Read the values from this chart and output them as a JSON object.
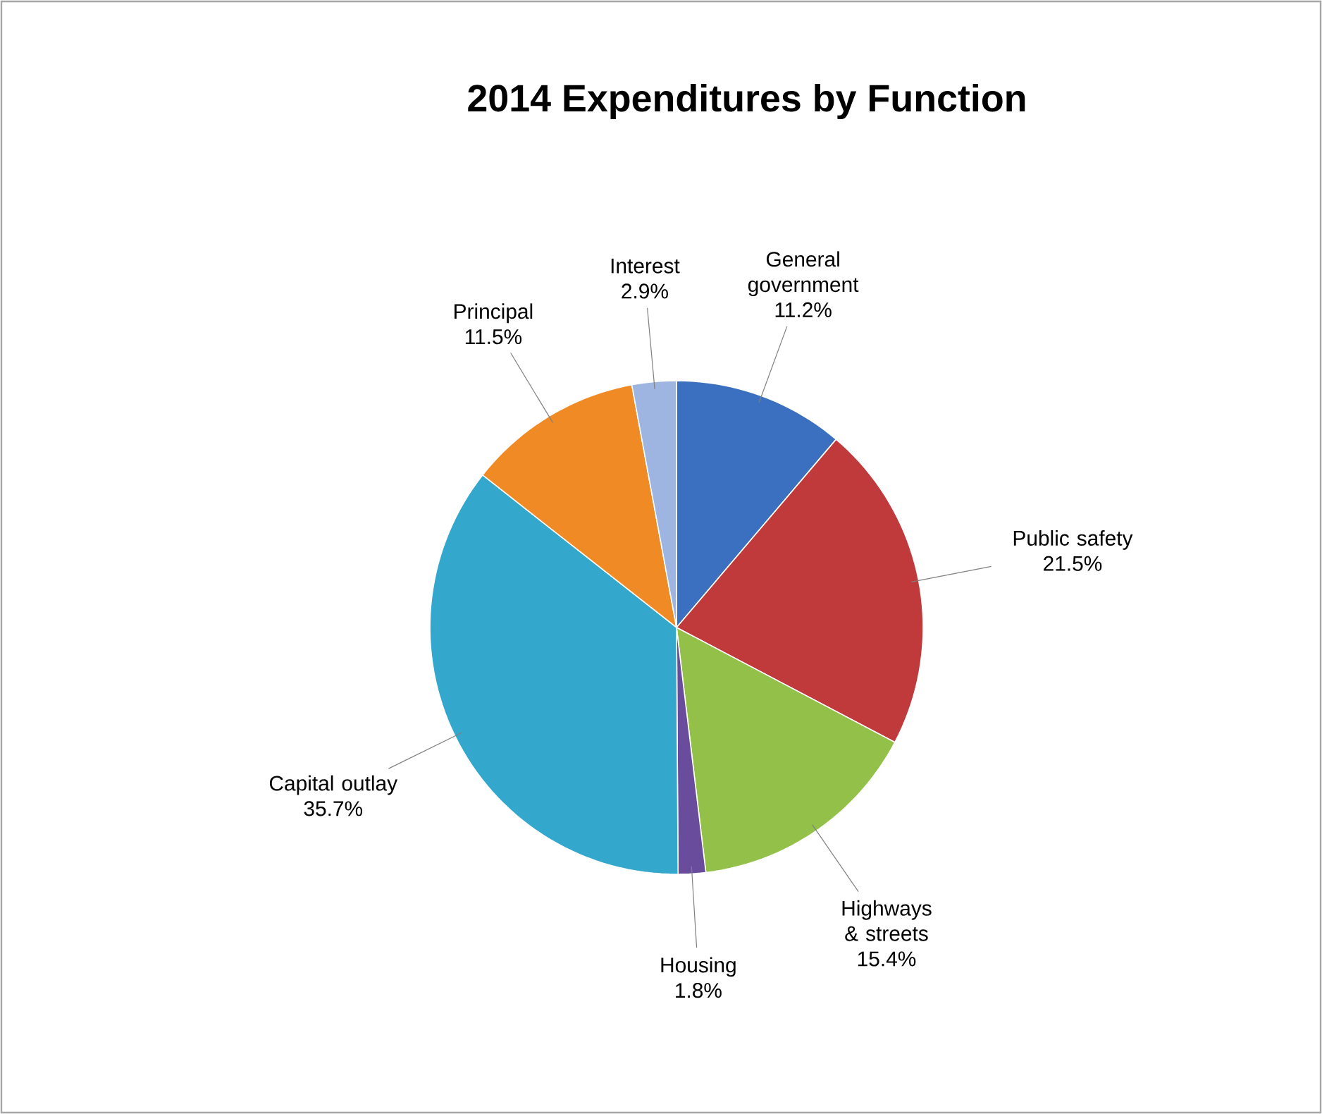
{
  "chart_data": {
    "type": "pie",
    "title": "2014 Expenditures by Function",
    "categories": [
      "General government",
      "Public safety",
      "Highways & streets",
      "Housing",
      "Capital outlay",
      "Principal",
      "Interest"
    ],
    "values": [
      11.2,
      21.5,
      15.4,
      1.8,
      35.7,
      11.5,
      2.9
    ],
    "value_labels": [
      "11.2%",
      "21.5%",
      "15.4%",
      "1.8%",
      "35.7%",
      "11.5%",
      "2.9%"
    ],
    "colors": [
      "#3b6fbf",
      "#c0393b",
      "#92c048",
      "#6a4c9c",
      "#33a7cc",
      "#f08a24",
      "#9db5e0"
    ]
  }
}
